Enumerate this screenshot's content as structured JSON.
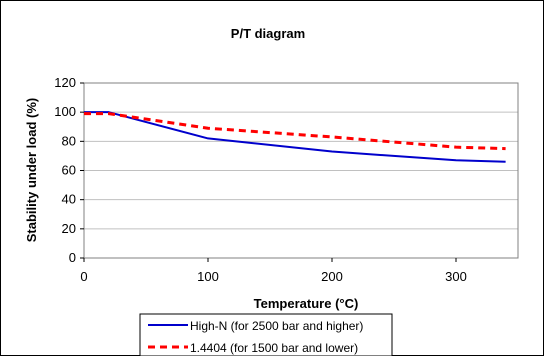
{
  "chart_data": {
    "type": "line",
    "title": "P/T diagram",
    "xlabel": "Temperature (°C)",
    "ylabel": "Stability under load (%)",
    "xlim": [
      0,
      350
    ],
    "ylim": [
      0,
      120
    ],
    "x_ticks": [
      "0",
      "100",
      "200",
      "300"
    ],
    "y_ticks": [
      "0",
      "20",
      "40",
      "60",
      "80",
      "100",
      "120"
    ],
    "grid": "horizontal",
    "legend_position": "bottom",
    "series": [
      {
        "name": "High-N (for 2500 bar and higher)",
        "color": "#0000cc",
        "style": "solid",
        "x": [
          0,
          20,
          100,
          200,
          300,
          340
        ],
        "y": [
          100,
          100,
          82,
          73,
          67,
          66
        ]
      },
      {
        "name": "1.4404 (for 1500 bar and lower)",
        "color": "#ff0000",
        "style": "dashed",
        "x": [
          0,
          20,
          100,
          200,
          300,
          340
        ],
        "y": [
          99,
          99,
          89,
          83,
          76,
          75
        ]
      }
    ]
  }
}
